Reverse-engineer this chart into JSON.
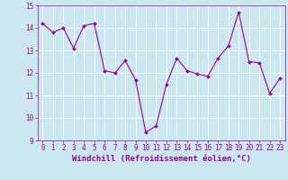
{
  "x": [
    0,
    1,
    2,
    3,
    4,
    5,
    6,
    7,
    8,
    9,
    10,
    11,
    12,
    13,
    14,
    15,
    16,
    17,
    18,
    19,
    20,
    21,
    22,
    23
  ],
  "y": [
    14.2,
    13.8,
    14.0,
    13.1,
    14.1,
    14.2,
    12.1,
    12.0,
    12.55,
    11.7,
    9.35,
    9.65,
    11.5,
    12.65,
    12.1,
    11.95,
    11.85,
    12.65,
    13.2,
    14.7,
    12.5,
    12.45,
    11.1,
    11.75
  ],
  "line_color": "#990099",
  "marker": "D",
  "marker_size": 2.0,
  "bg_color": "#cbe8f0",
  "grid_color": "#ffffff",
  "xlabel": "Windchill (Refroidissement éolien,°C)",
  "xlabel_color": "#990099",
  "tick_color": "#990099",
  "ylim": [
    9,
    15
  ],
  "xlim": [
    -0.5,
    23.5
  ],
  "yticks": [
    9,
    10,
    11,
    12,
    13,
    14,
    15
  ],
  "xticks": [
    0,
    1,
    2,
    3,
    4,
    5,
    6,
    7,
    8,
    9,
    10,
    11,
    12,
    13,
    14,
    15,
    16,
    17,
    18,
    19,
    20,
    21,
    22,
    23
  ],
  "xtick_labels": [
    "0",
    "1",
    "2",
    "3",
    "4",
    "5",
    "6",
    "7",
    "8",
    "9",
    "10",
    "11",
    "12",
    "13",
    "14",
    "15",
    "16",
    "17",
    "18",
    "19",
    "20",
    "21",
    "22",
    "23"
  ],
  "tick_fontsize": 5.5,
  "xlabel_fontsize": 6.5
}
